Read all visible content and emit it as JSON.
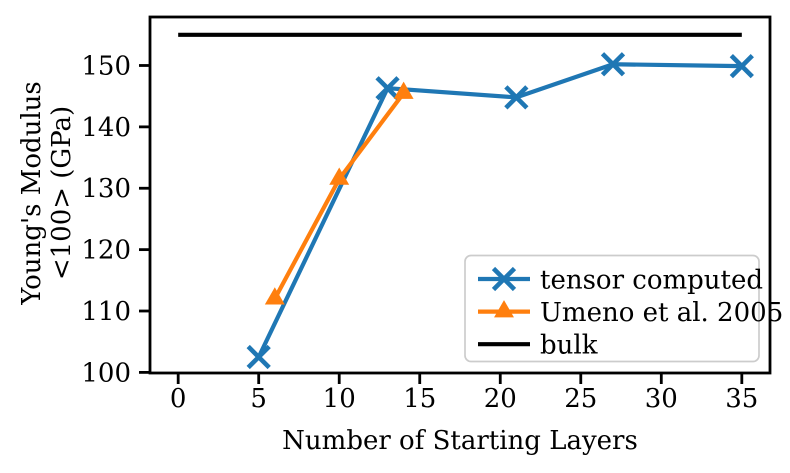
{
  "figure": {
    "background": "#ffffff",
    "text_color": "#000000",
    "spine_color": "#000000"
  },
  "chart_data": {
    "type": "line",
    "title": "",
    "xlabel": "Number of Starting Layers",
    "ylabel_lines": [
      "Young's Modulus",
      "<100> (GPa)"
    ],
    "xlim": [
      -1.75,
      36.75
    ],
    "ylim": [
      99.9,
      157.9
    ],
    "xticks": [
      0,
      5,
      10,
      15,
      20,
      25,
      30,
      35
    ],
    "yticks": [
      100,
      110,
      120,
      130,
      140,
      150
    ],
    "grid": false,
    "legend": {
      "position": "lower right",
      "border_color": "#cccccc",
      "background": "#ffffff"
    },
    "series": [
      {
        "name": "tensor computed",
        "color": "#1f77b4",
        "marker": "x",
        "x": [
          5,
          13,
          21,
          27,
          35
        ],
        "y": [
          102.5,
          146.3,
          144.8,
          150.2,
          149.9
        ]
      },
      {
        "name": "Umeno et al. 2005",
        "color": "#ff7f0e",
        "marker": "triangle-up",
        "x": [
          6,
          10,
          14
        ],
        "y": [
          112.0,
          131.5,
          145.5
        ]
      },
      {
        "name": "bulk",
        "color": "#000000",
        "marker": "none",
        "x": [
          0,
          35
        ],
        "y": [
          155.0,
          155.0
        ]
      }
    ]
  }
}
